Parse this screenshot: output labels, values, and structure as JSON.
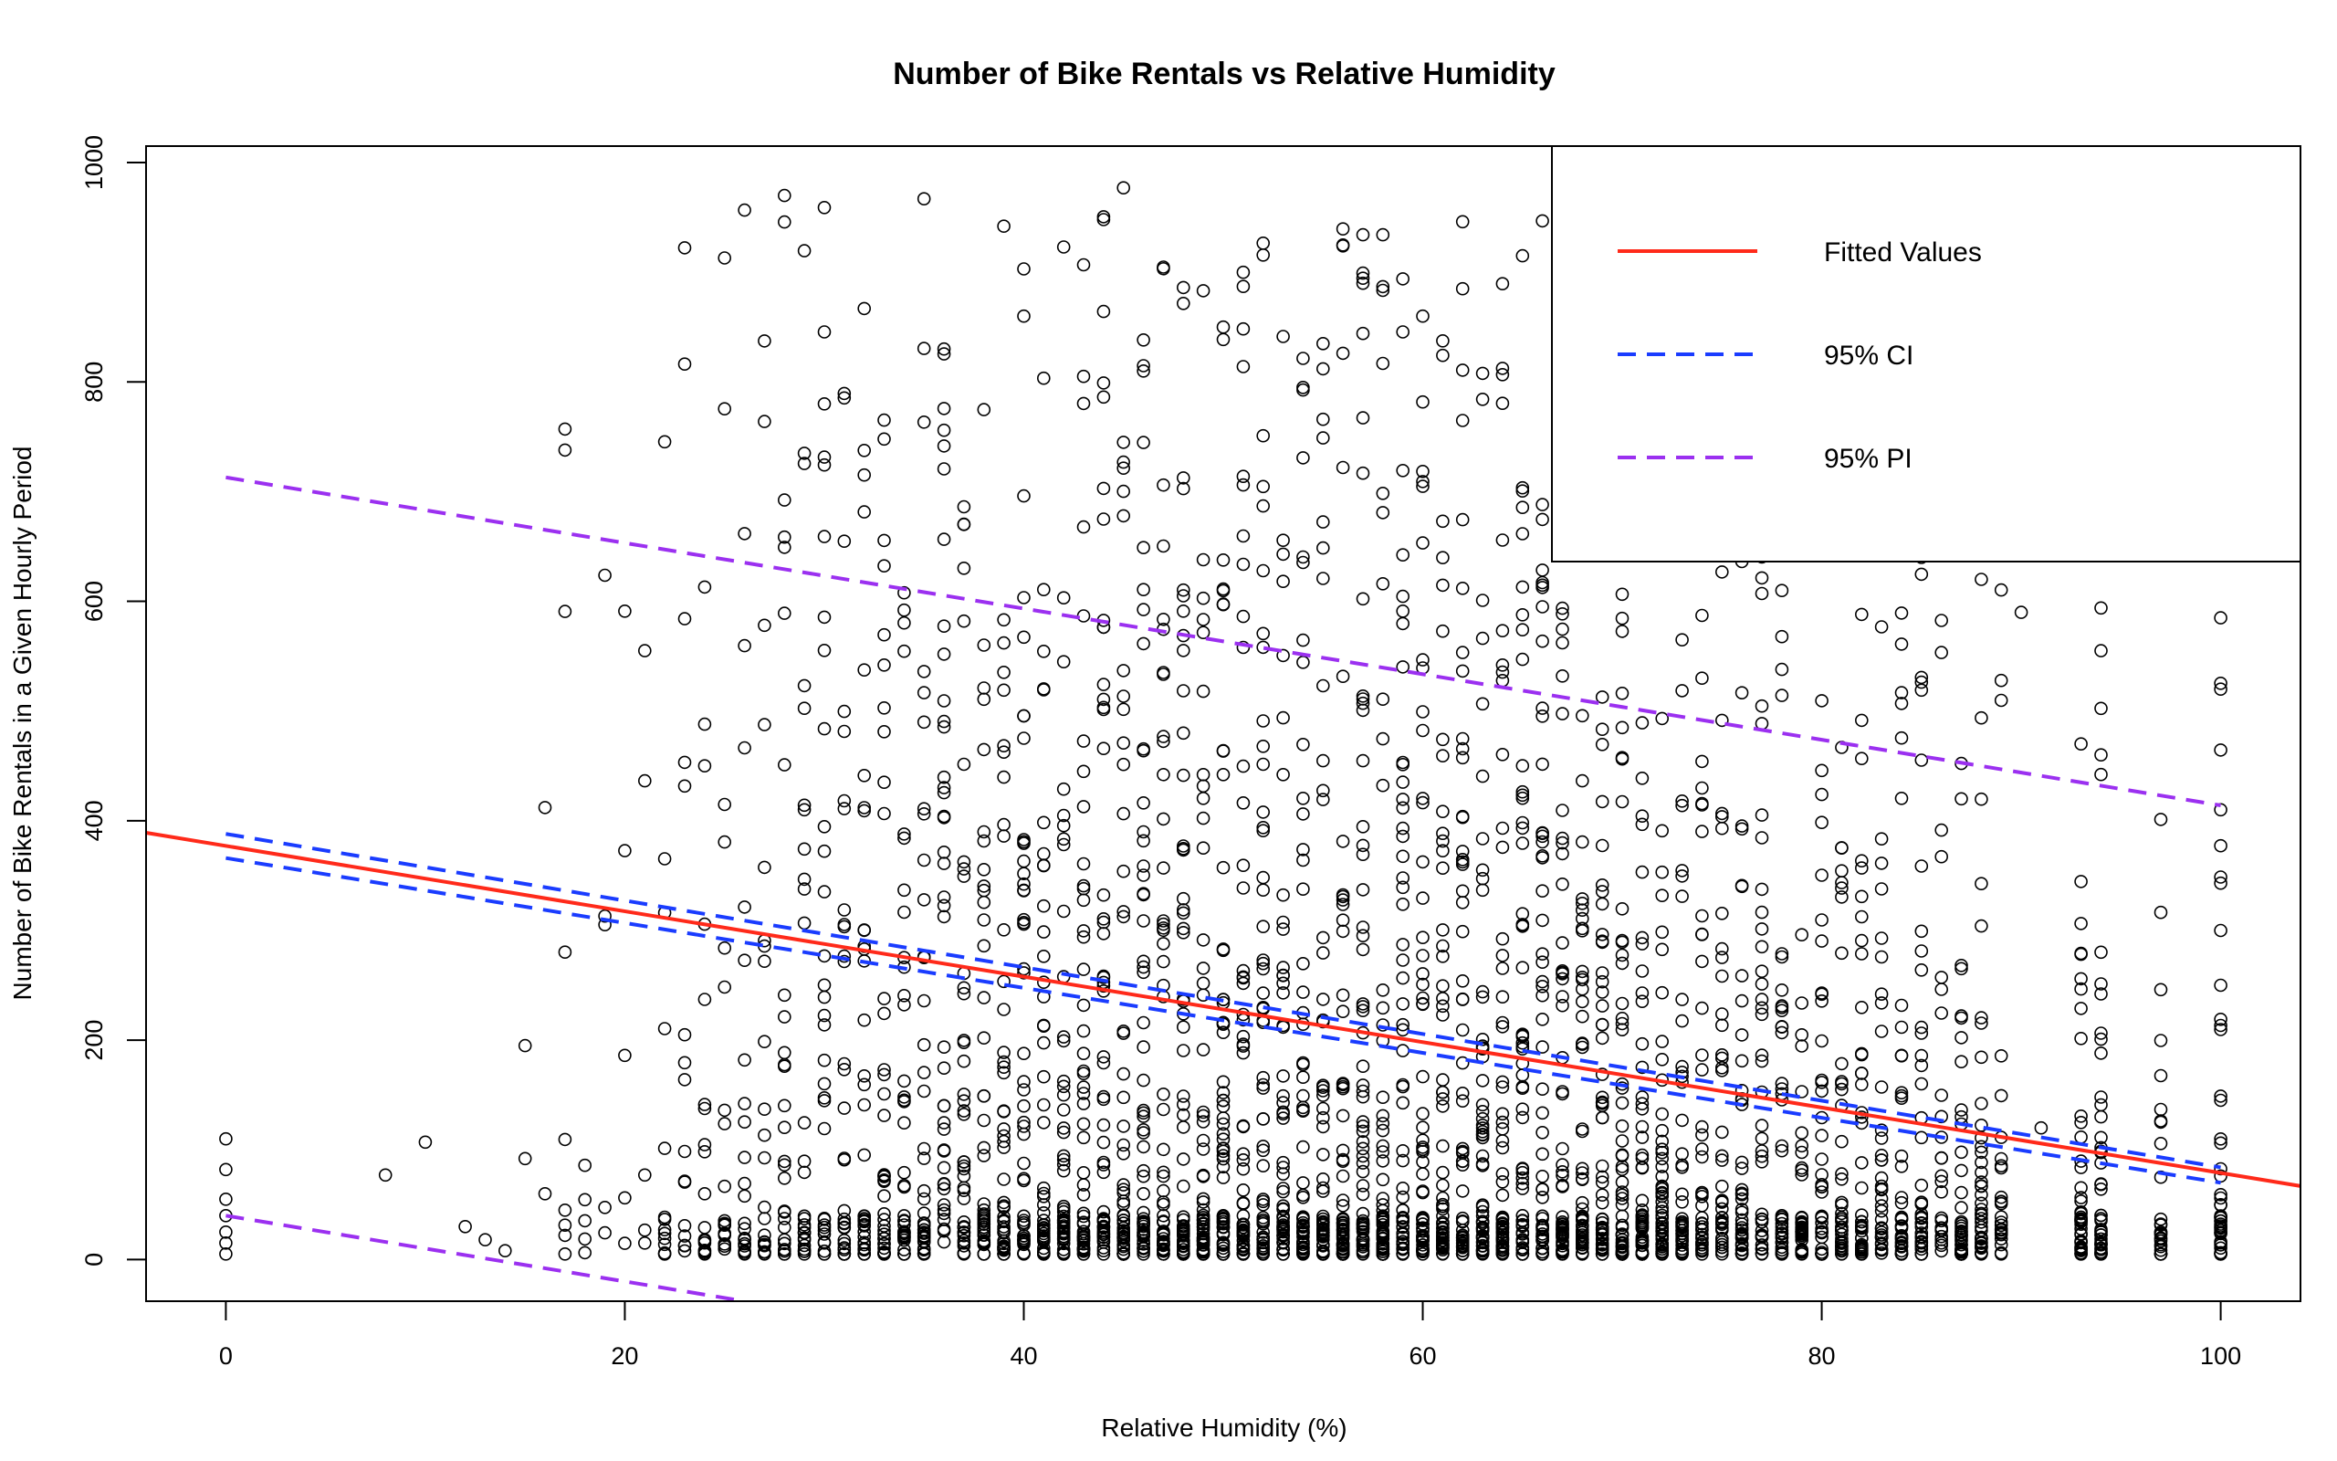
{
  "chart_data": {
    "type": "scatter",
    "title": "Number of Bike Rentals vs Relative Humidity",
    "xlabel": "Relative Humidity (%)",
    "ylabel": "Number of Bike Rentals in a Given Hourly Period",
    "xlim": [
      -4,
      104
    ],
    "ylim": [
      -38,
      1015
    ],
    "x_ticks": [
      "0",
      "20",
      "40",
      "60",
      "80",
      "100"
    ],
    "y_ticks": [
      "0",
      "200",
      "400",
      "600",
      "800",
      "1000"
    ],
    "grid": false,
    "legend_position": "top-right",
    "legend": [
      {
        "label": "Fitted Values",
        "color": "#ff2a1a",
        "style": "solid"
      },
      {
        "label": "95% CI",
        "color": "#1a3cff",
        "style": "dashed"
      },
      {
        "label": "95% PI",
        "color": "#9b30f0",
        "style": "dashed"
      }
    ],
    "fitted_line": {
      "x": [
        -4,
        104
      ],
      "y": [
        389,
        67
      ]
    },
    "ci_upper": {
      "x": [
        0,
        100
      ],
      "y": [
        388,
        84
      ]
    },
    "ci_lower": {
      "x": [
        0,
        100
      ],
      "y": [
        366,
        70
      ]
    },
    "pi_upper": {
      "x": [
        0,
        100
      ],
      "y": [
        713,
        414
      ]
    },
    "pi_lower": {
      "x": [
        0,
        26
      ],
      "y": [
        40,
        -38
      ]
    },
    "scatter_description": "Open circle markers, one per hourly observation; dense vertical columns at integer humidity values from about 15 to 100; counts range from 0 to about 977",
    "points_sample": {
      "x": [
        0,
        0,
        0,
        0,
        0,
        0,
        0,
        8,
        10,
        12,
        13,
        14,
        15,
        15,
        16,
        16,
        17,
        17,
        17,
        17,
        28,
        35,
        44,
        45,
        39,
        42,
        51,
        57,
        60,
        62,
        65,
        30,
        33,
        36,
        40,
        46,
        50,
        55,
        70,
        75,
        80,
        85,
        88,
        90,
        94,
        94,
        100,
        100,
        100,
        100,
        100,
        94,
        93,
        97,
        91
      ],
      "y": [
        110,
        82,
        55,
        40,
        25,
        15,
        5,
        77,
        107,
        30,
        18,
        8,
        195,
        92,
        412,
        60,
        757,
        45,
        22,
        5,
        970,
        967,
        948,
        977,
        942,
        923,
        900,
        890,
        860,
        885,
        915,
        780,
        748,
        830,
        860,
        810,
        850,
        812,
        730,
        700,
        650,
        640,
        620,
        590,
        594,
        555,
        585,
        520,
        410,
        300,
        250,
        460,
        470,
        75,
        120
      ]
    }
  }
}
